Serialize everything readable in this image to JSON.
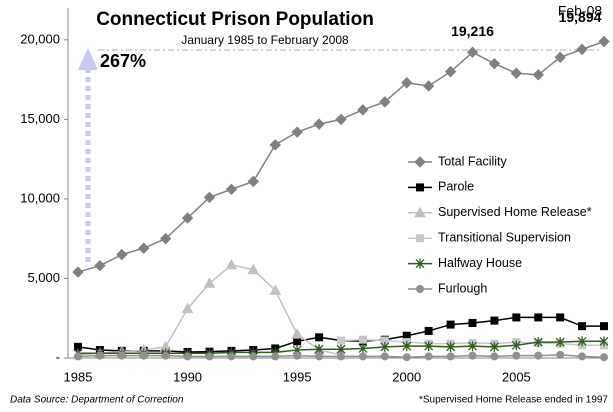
{
  "chart_data": {
    "type": "line",
    "title": "Connecticut Prison Population",
    "subtitle": "January 1985 to February 2008",
    "annotations": {
      "growth": "267%",
      "last_period": "Feb-08"
    },
    "source": "Data Source: Department of Correction",
    "note": "*Supervised Home Release ended in 1997",
    "categories": [
      "1985",
      null,
      null,
      null,
      null,
      "1990",
      null,
      null,
      null,
      null,
      "1995",
      null,
      null,
      null,
      null,
      "2000",
      null,
      null,
      null,
      null,
      "2005",
      null,
      null,
      null,
      null
    ],
    "ylim": [
      0,
      22000
    ],
    "yticks": [
      {
        "value": 0,
        "label": "-"
      },
      {
        "value": 5000,
        "label": "5,000"
      },
      {
        "value": 10000,
        "label": "10,000"
      },
      {
        "value": 15000,
        "label": "15,000"
      },
      {
        "value": 20000,
        "label": "20,000"
      }
    ],
    "legend": "right",
    "series": [
      {
        "name": "Total Facility",
        "color": "#808080",
        "marker": "diamond",
        "values": [
          5400,
          5800,
          6500,
          6900,
          7500,
          8800,
          10100,
          10600,
          11100,
          13400,
          14200,
          14700,
          15000,
          15600,
          16100,
          17300,
          17100,
          18000,
          19216,
          18500,
          17900,
          17800,
          18900,
          19400,
          19894
        ],
        "value_labels": [
          null,
          null,
          null,
          null,
          null,
          null,
          null,
          null,
          null,
          null,
          null,
          null,
          null,
          null,
          null,
          null,
          null,
          null,
          "19,216",
          null,
          null,
          null,
          null,
          null,
          "19,894"
        ]
      },
      {
        "name": "Parole",
        "color": "#000000",
        "marker": "square",
        "values": [
          700,
          500,
          450,
          450,
          450,
          380,
          400,
          450,
          500,
          600,
          1050,
          1300,
          1100,
          1050,
          1150,
          1400,
          1700,
          2100,
          2200,
          2350,
          2550,
          2550,
          2550,
          2000,
          2000
        ]
      },
      {
        "name": "Supervised Home Release*",
        "color": "#c0c0c0",
        "marker": "triangle",
        "values": [
          200,
          300,
          400,
          500,
          700,
          3100,
          4700,
          5850,
          5550,
          4250,
          1500,
          500,
          200,
          null,
          null,
          null,
          null,
          null,
          null,
          null,
          null,
          null,
          null,
          null,
          null
        ]
      },
      {
        "name": "Transitional Supervision",
        "color": "#c8c8c8",
        "marker": "square",
        "values": [
          null,
          null,
          null,
          null,
          null,
          null,
          null,
          null,
          null,
          null,
          null,
          null,
          1100,
          1150,
          1100,
          1000,
          900,
          900,
          950,
          900,
          1000,
          950,
          900,
          800,
          800
        ]
      },
      {
        "name": "Halfway House",
        "color": "#2e5e1e",
        "marker": "star",
        "values": [
          300,
          300,
          300,
          300,
          300,
          300,
          300,
          350,
          350,
          350,
          500,
          550,
          550,
          600,
          700,
          750,
          750,
          700,
          750,
          700,
          800,
          1000,
          1000,
          1050,
          1050
        ]
      },
      {
        "name": "Furlough",
        "color": "#909090",
        "marker": "circle",
        "values": [
          100,
          150,
          150,
          150,
          150,
          100,
          100,
          100,
          100,
          100,
          150,
          100,
          100,
          100,
          100,
          50,
          100,
          100,
          150,
          100,
          150,
          150,
          200,
          100,
          50
        ]
      }
    ]
  }
}
